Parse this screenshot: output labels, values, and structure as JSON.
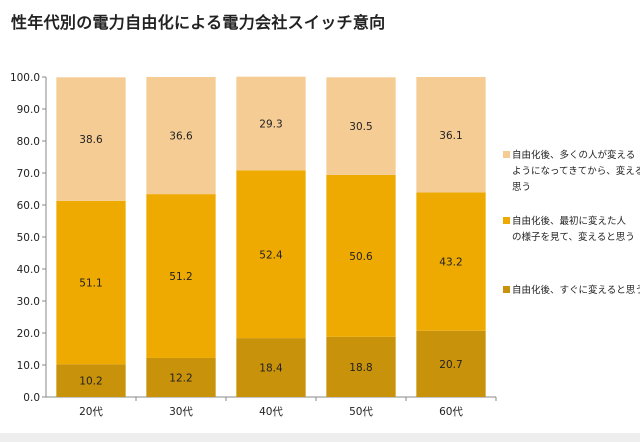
{
  "title": "性年代別の電力自由化による電力会社スイッチ意向",
  "chart_data": {
    "type": "bar",
    "stacked": true,
    "title": "性年代別の電力自由化による電力会社スイッチ意向",
    "categories": [
      "20代",
      "30代",
      "40代",
      "50代",
      "60代"
    ],
    "ylim": [
      0,
      100
    ],
    "yticks": [
      "0.0",
      "10.0",
      "20.0",
      "30.0",
      "40.0",
      "50.0",
      "60.0",
      "70.0",
      "80.0",
      "90.0",
      "100.0"
    ],
    "ytick_values": [
      0,
      10,
      20,
      30,
      40,
      50,
      60,
      70,
      80,
      90,
      100
    ],
    "series": [
      {
        "name": "自由化後、すぐに変えると思う",
        "values": [
          10.2,
          12.2,
          18.4,
          18.8,
          20.7
        ],
        "labels": [
          "10.2",
          "12.2",
          "18.4",
          "18.8",
          "20.7"
        ],
        "color": "#c8920a"
      },
      {
        "name": "自由化後、最初に変えた人の様子を見て、変えると思う",
        "values": [
          51.1,
          51.2,
          52.4,
          50.6,
          43.2
        ],
        "labels": [
          "51.1",
          "51.2",
          "52.4",
          "50.6",
          "43.2"
        ],
        "color": "#eeaa00"
      },
      {
        "name": "自由化後、多くの人が変えるようになってきてから、変えると思う",
        "values": [
          38.6,
          36.6,
          29.3,
          30.5,
          36.1
        ],
        "labels": [
          "38.6",
          "36.6",
          "29.3",
          "30.5",
          "36.1"
        ],
        "color": "#f6cc95"
      }
    ],
    "legend_lines": [
      [
        "自由化後、すぐに変えると思う"
      ],
      [
        "自由化後、最初に変えた人",
        "の様子を見て、変えると思う"
      ],
      [
        "自由化後、多くの人が変える",
        "ようになってきてから、変えると",
        "思う"
      ]
    ],
    "legend_position": "right",
    "grid": false
  }
}
